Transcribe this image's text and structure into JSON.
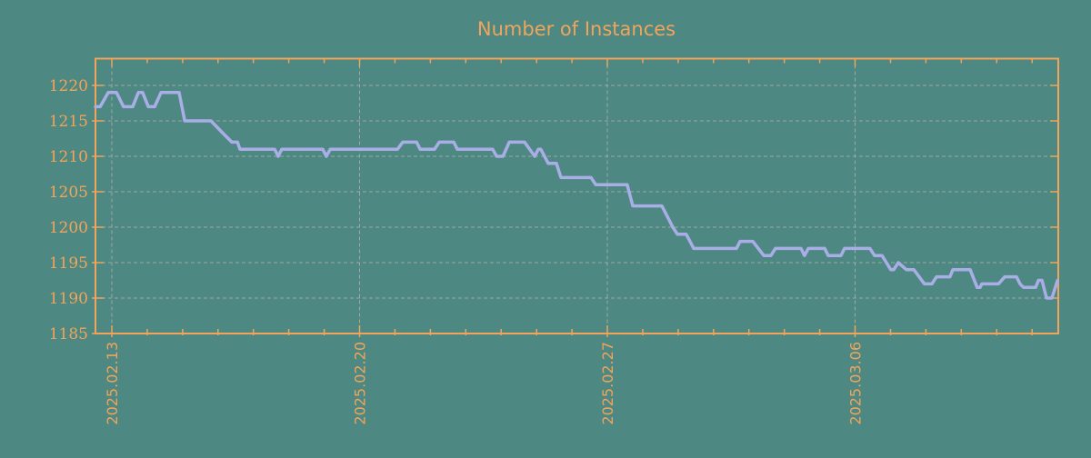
{
  "chart_data": {
    "type": "line",
    "title": "Number of Instances",
    "xlabel": "",
    "ylabel": "",
    "legend_position": "none",
    "grid": true,
    "colors": {
      "background": "#4D8882",
      "axis": "#F1A45B",
      "title": "#F1A45B",
      "tick_label": "#F1A45B",
      "line": "#AAAEE7",
      "grid": "#A0A9A4"
    },
    "ylim": [
      1185,
      1223.8
    ],
    "yticks": [
      1185,
      1190,
      1195,
      1200,
      1205,
      1210,
      1215,
      1220
    ],
    "xtick_labels": [
      "2025.02.13",
      "2025.02.20",
      "2025.02.27",
      "2025.03.06"
    ],
    "xtick_days": [
      0,
      7,
      14,
      21
    ],
    "x_range_days": [
      -0.46,
      26.74
    ],
    "minor_tick_every_days": 1,
    "series": [
      {
        "name": "instances",
        "x_unit": "days_since_2025.02.13",
        "points": [
          [
            -0.46,
            1217
          ],
          [
            -0.33,
            1217
          ],
          [
            -0.1,
            1219
          ],
          [
            0.13,
            1219
          ],
          [
            0.33,
            1217
          ],
          [
            0.59,
            1217
          ],
          [
            0.75,
            1219
          ],
          [
            0.87,
            1219
          ],
          [
            1.03,
            1217
          ],
          [
            1.21,
            1217
          ],
          [
            1.39,
            1219
          ],
          [
            1.9,
            1219
          ],
          [
            2.06,
            1215
          ],
          [
            2.8,
            1215
          ],
          [
            3.19,
            1213
          ],
          [
            3.39,
            1212
          ],
          [
            3.55,
            1212
          ],
          [
            3.62,
            1211
          ],
          [
            4.6,
            1211
          ],
          [
            4.7,
            1210
          ],
          [
            4.8,
            1211
          ],
          [
            5.96,
            1211
          ],
          [
            6.06,
            1210
          ],
          [
            6.17,
            1211
          ],
          [
            8.07,
            1211
          ],
          [
            8.22,
            1212
          ],
          [
            8.61,
            1212
          ],
          [
            8.71,
            1211
          ],
          [
            9.12,
            1211
          ],
          [
            9.25,
            1212
          ],
          [
            9.66,
            1212
          ],
          [
            9.76,
            1211
          ],
          [
            10.76,
            1211
          ],
          [
            10.87,
            1210
          ],
          [
            11.05,
            1210
          ],
          [
            11.23,
            1212
          ],
          [
            11.66,
            1212
          ],
          [
            11.95,
            1210
          ],
          [
            12.05,
            1211
          ],
          [
            12.12,
            1211
          ],
          [
            12.33,
            1209
          ],
          [
            12.56,
            1209
          ],
          [
            12.69,
            1207
          ],
          [
            13.54,
            1207
          ],
          [
            13.67,
            1206
          ],
          [
            14.56,
            1206
          ],
          [
            14.72,
            1203
          ],
          [
            15.54,
            1203
          ],
          [
            15.85,
            1200
          ],
          [
            15.98,
            1199
          ],
          [
            16.23,
            1199
          ],
          [
            16.44,
            1197
          ],
          [
            17.65,
            1197
          ],
          [
            17.75,
            1198
          ],
          [
            18.11,
            1198
          ],
          [
            18.42,
            1196
          ],
          [
            18.62,
            1196
          ],
          [
            18.75,
            1197
          ],
          [
            19.47,
            1197
          ],
          [
            19.57,
            1196
          ],
          [
            19.68,
            1197
          ],
          [
            20.14,
            1197
          ],
          [
            20.24,
            1196
          ],
          [
            20.6,
            1196
          ],
          [
            20.7,
            1197
          ],
          [
            21.42,
            1197
          ],
          [
            21.55,
            1196
          ],
          [
            21.76,
            1196
          ],
          [
            22.01,
            1194
          ],
          [
            22.09,
            1194
          ],
          [
            22.22,
            1195
          ],
          [
            22.45,
            1194
          ],
          [
            22.66,
            1194
          ],
          [
            22.96,
            1192
          ],
          [
            23.17,
            1192
          ],
          [
            23.3,
            1193
          ],
          [
            23.68,
            1193
          ],
          [
            23.76,
            1194
          ],
          [
            24.25,
            1194
          ],
          [
            24.45,
            1191.5
          ],
          [
            24.53,
            1191.5
          ],
          [
            24.58,
            1192
          ],
          [
            25.05,
            1192
          ],
          [
            25.23,
            1193
          ],
          [
            25.56,
            1193
          ],
          [
            25.66,
            1192
          ],
          [
            25.76,
            1191.5
          ],
          [
            26.1,
            1191.5
          ],
          [
            26.18,
            1192.5
          ],
          [
            26.28,
            1192.5
          ],
          [
            26.41,
            1190
          ],
          [
            26.56,
            1190
          ],
          [
            26.72,
            1192.5
          ]
        ]
      }
    ]
  }
}
